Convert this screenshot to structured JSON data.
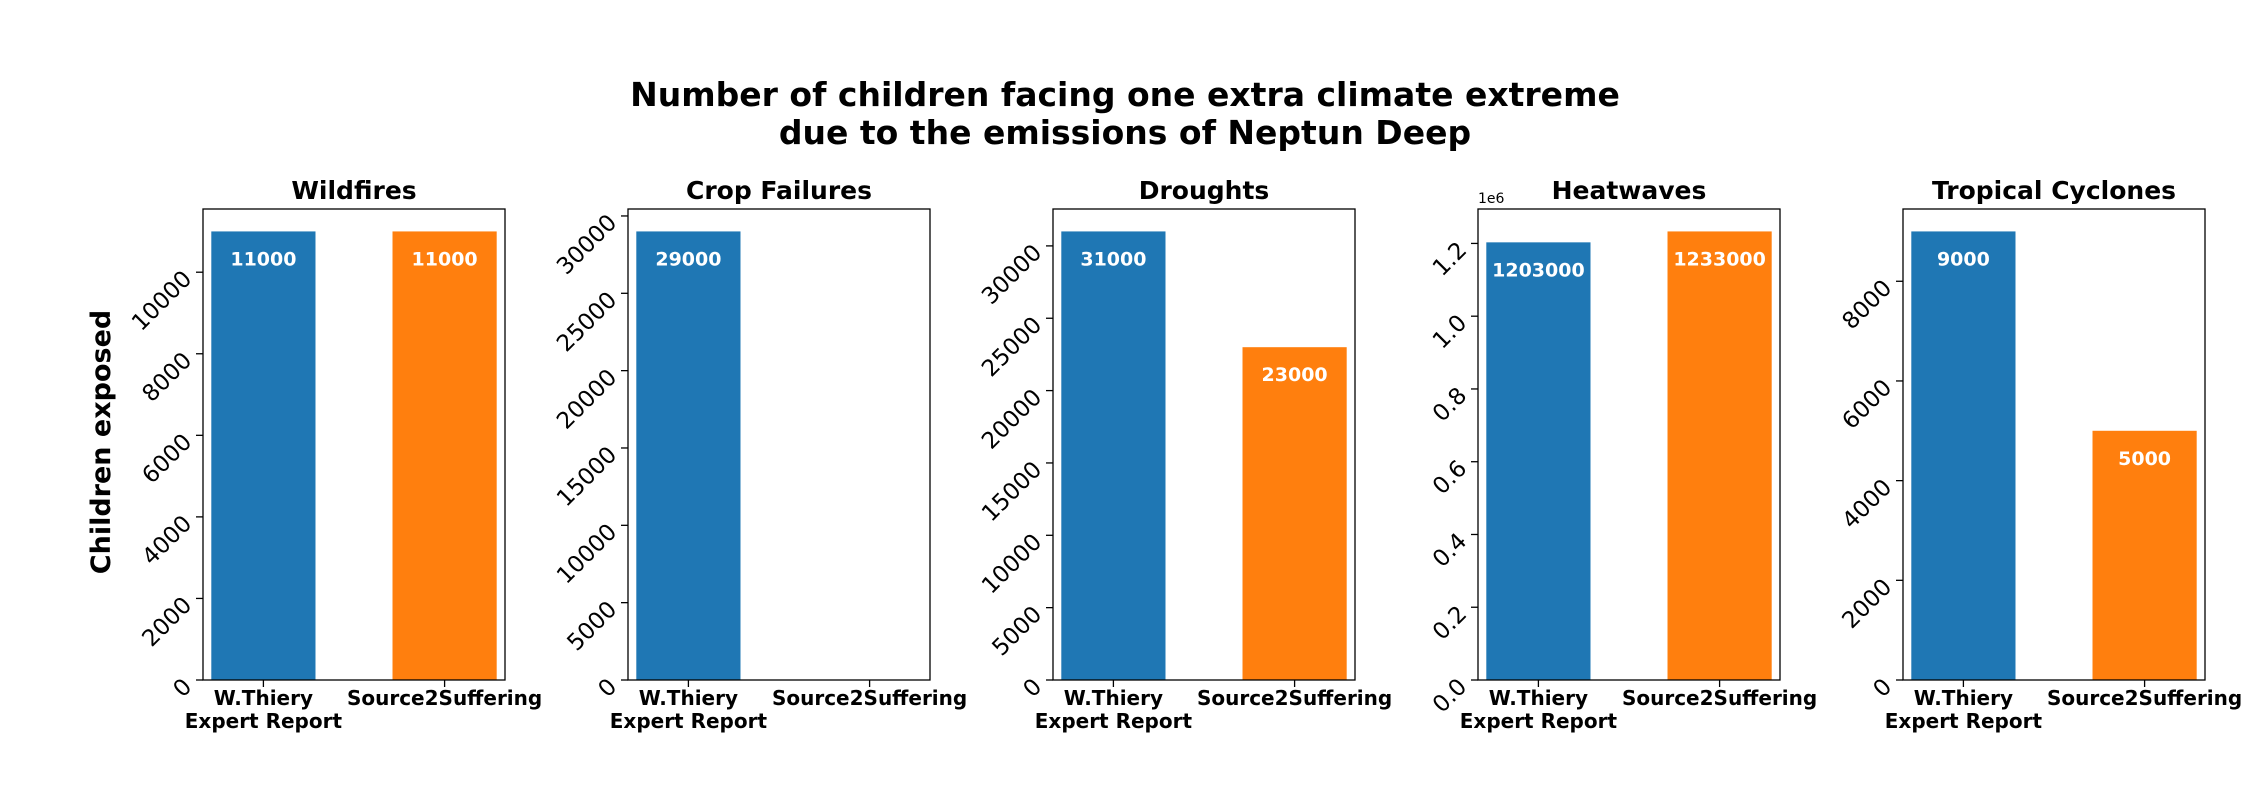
{
  "title_line1": "Number of children facing one extra climate extreme",
  "title_line2": "due to the emissions of Neptun Deep",
  "ylabel": "Children exposed",
  "colors": {
    "series_a": "#1f77b4",
    "series_b": "#ff7f0e"
  },
  "chart_data": [
    {
      "type": "bar",
      "title": "Wildfires",
      "categories": [
        "W.Thiery\nExpert Report",
        "Source2Suffering"
      ],
      "values": [
        11000,
        11000
      ],
      "value_labels": [
        "11000",
        "11000"
      ],
      "ylim": [
        0,
        11550
      ],
      "yticks": [
        0,
        2000,
        4000,
        6000,
        8000,
        10000
      ],
      "ytick_labels": [
        "0",
        "2000",
        "4000",
        "6000",
        "8000",
        "10000"
      ],
      "ylabel": "Children exposed"
    },
    {
      "type": "bar",
      "title": "Crop Failures",
      "categories": [
        "W.Thiery\nExpert Report",
        "Source2Suffering"
      ],
      "values": [
        29000,
        0
      ],
      "value_labels": [
        "29000",
        ""
      ],
      "ylim": [
        0,
        30450
      ],
      "yticks": [
        0,
        5000,
        10000,
        15000,
        20000,
        25000,
        30000
      ],
      "ytick_labels": [
        "0",
        "5000",
        "10000",
        "15000",
        "20000",
        "25000",
        "30000"
      ]
    },
    {
      "type": "bar",
      "title": "Droughts",
      "categories": [
        "W.Thiery\nExpert Report",
        "Source2Suffering"
      ],
      "values": [
        31000,
        23000
      ],
      "value_labels": [
        "31000",
        "23000"
      ],
      "ylim": [
        0,
        32550
      ],
      "yticks": [
        0,
        5000,
        10000,
        15000,
        20000,
        25000,
        30000
      ],
      "ytick_labels": [
        "0",
        "5000",
        "10000",
        "15000",
        "20000",
        "25000",
        "30000"
      ]
    },
    {
      "type": "bar",
      "title": "Heatwaves",
      "categories": [
        "W.Thiery\nExpert Report",
        "Source2Suffering"
      ],
      "values": [
        1203000,
        1233000
      ],
      "value_labels": [
        "1203000",
        "1233000"
      ],
      "ylim": [
        0,
        1294650
      ],
      "yticks": [
        0,
        200000,
        400000,
        600000,
        800000,
        1000000,
        1200000
      ],
      "ytick_labels": [
        "0.0",
        "0.2",
        "0.4",
        "0.6",
        "0.8",
        "1.0",
        "1.2"
      ],
      "offset_label": "1e6"
    },
    {
      "type": "bar",
      "title": "Tropical Cyclones",
      "categories": [
        "W.Thiery\nExpert Report",
        "Source2Suffering"
      ],
      "values": [
        9000,
        5000
      ],
      "value_labels": [
        "9000",
        "5000"
      ],
      "ylim": [
        0,
        9450
      ],
      "yticks": [
        0,
        2000,
        4000,
        6000,
        8000
      ],
      "ytick_labels": [
        "0",
        "2000",
        "4000",
        "6000",
        "8000"
      ]
    }
  ]
}
